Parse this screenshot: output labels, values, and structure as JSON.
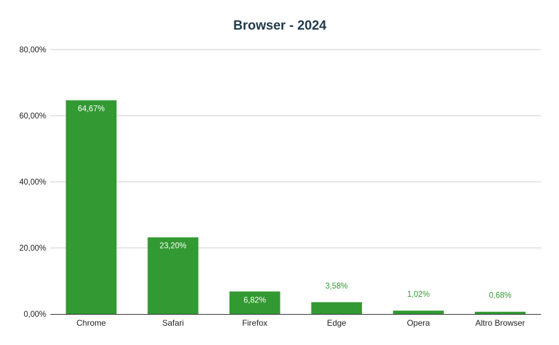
{
  "chart_data": {
    "type": "bar",
    "title": "Browser - 2024",
    "xlabel": "",
    "ylabel": "",
    "categories": [
      "Chrome",
      "Safari",
      "Firefox",
      "Edge",
      "Opera",
      "Altro Browser"
    ],
    "values": [
      64.67,
      23.2,
      6.82,
      3.58,
      1.02,
      0.68
    ],
    "data_labels": [
      "64,67%",
      "23,20%",
      "6,82%",
      "3,58%",
      "1,02%",
      "0,68%"
    ],
    "ylim": [
      0,
      80
    ],
    "yticks": [
      0,
      20,
      40,
      60,
      80
    ],
    "ytick_labels": [
      "0,00%",
      "20,00%",
      "40,00%",
      "60,00%",
      "80,00%"
    ],
    "grid": true,
    "legend": "none",
    "colors": {
      "bar": "#339933",
      "label_inside": "#ffffff",
      "label_outside": "#339933",
      "title": "#1f3b4d"
    }
  }
}
